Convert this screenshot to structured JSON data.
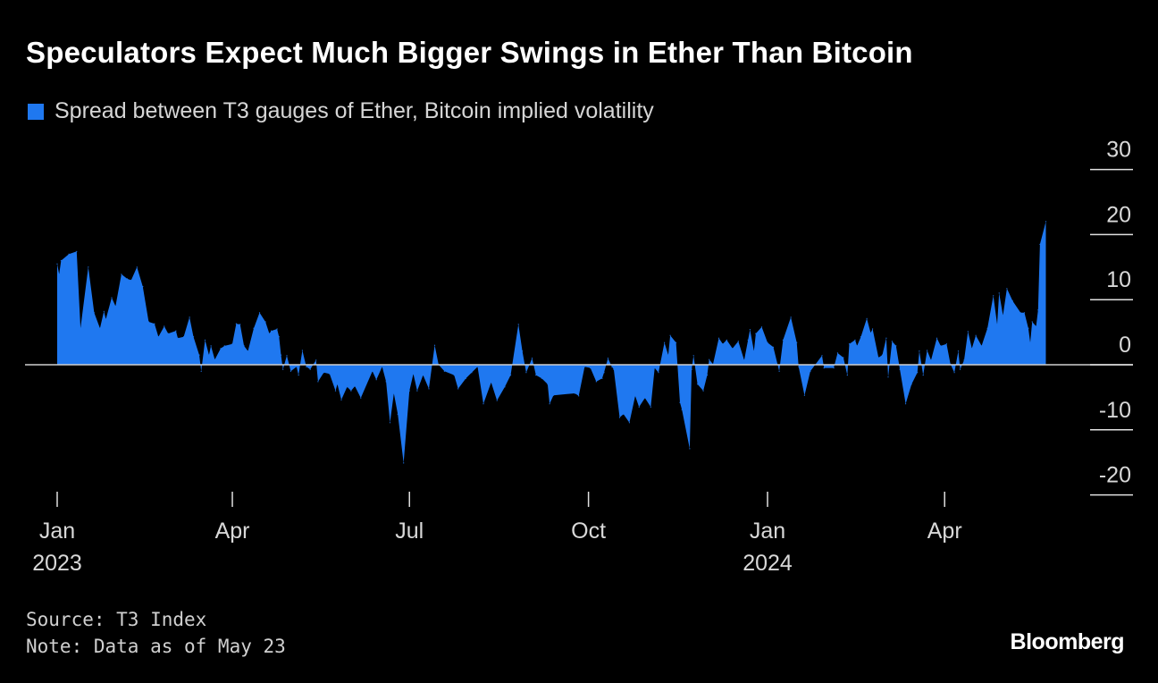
{
  "colors": {
    "series": "#1f78f0",
    "background": "#000000",
    "zero_line": "#cfcfcf",
    "text": "#ffffff"
  },
  "chart_data": {
    "type": "area",
    "title": "Speculators Expect Much Bigger Swings in Ether Than Bitcoin",
    "legend_position": "top-left",
    "series": [
      {
        "name": "Spread between T3 gauges of Ether, Bitcoin implied volatility",
        "points": [
          [
            "2023-01-01",
            15.5
          ],
          [
            "2023-01-02",
            13.9
          ],
          [
            "2023-01-03",
            16
          ],
          [
            "2023-01-07",
            17
          ],
          [
            "2023-01-11",
            17.4
          ],
          [
            "2023-01-13",
            5.6
          ],
          [
            "2023-01-17",
            15
          ],
          [
            "2023-01-20",
            8
          ],
          [
            "2023-01-23",
            5.6
          ],
          [
            "2023-01-25",
            8.2
          ],
          [
            "2023-01-26",
            7
          ],
          [
            "2023-01-29",
            10.3
          ],
          [
            "2023-01-31",
            9
          ],
          [
            "2023-02-03",
            13.9
          ],
          [
            "2023-02-06",
            13.2
          ],
          [
            "2023-02-08",
            13
          ],
          [
            "2023-02-11",
            15
          ],
          [
            "2023-02-14",
            12
          ],
          [
            "2023-02-17",
            6.6
          ],
          [
            "2023-02-20",
            6.3
          ],
          [
            "2023-02-22",
            4.3
          ],
          [
            "2023-02-25",
            5.9
          ],
          [
            "2023-02-27",
            4.8
          ],
          [
            "2023-03-03",
            5.2
          ],
          [
            "2023-03-04",
            4.1
          ],
          [
            "2023-03-07",
            4.3
          ],
          [
            "2023-03-10",
            7.3
          ],
          [
            "2023-03-12",
            4.3
          ],
          [
            "2023-03-15",
            1.5
          ],
          [
            "2023-03-16",
            -1
          ],
          [
            "2023-03-18",
            3.8
          ],
          [
            "2023-03-20",
            1.5
          ],
          [
            "2023-03-21",
            2.9
          ],
          [
            "2023-03-23",
            0.8
          ],
          [
            "2023-03-26",
            2.5
          ],
          [
            "2023-03-28",
            2.9
          ],
          [
            "2023-04-01",
            3.2
          ],
          [
            "2023-04-03",
            6.3
          ],
          [
            "2023-04-05",
            6.2
          ],
          [
            "2023-04-07",
            2.9
          ],
          [
            "2023-04-09",
            2.1
          ],
          [
            "2023-04-12",
            5.6
          ],
          [
            "2023-04-15",
            8
          ],
          [
            "2023-04-18",
            6.6
          ],
          [
            "2023-04-20",
            4.8
          ],
          [
            "2023-04-21",
            5.2
          ],
          [
            "2023-04-24",
            5.5
          ],
          [
            "2023-04-25",
            4.3
          ],
          [
            "2023-04-26",
            1.5
          ],
          [
            "2023-04-27",
            -0.7
          ],
          [
            "2023-04-29",
            1.4
          ],
          [
            "2023-05-01",
            -1
          ],
          [
            "2023-05-04",
            -0.3
          ],
          [
            "2023-05-05",
            -1.6
          ],
          [
            "2023-05-07",
            2.2
          ],
          [
            "2023-05-09",
            -0.3
          ],
          [
            "2023-05-11",
            -0.7
          ],
          [
            "2023-05-14",
            0.7
          ],
          [
            "2023-05-15",
            -2.6
          ],
          [
            "2023-05-18",
            -1.2
          ],
          [
            "2023-05-21",
            -1.4
          ],
          [
            "2023-05-24",
            -4
          ],
          [
            "2023-05-25",
            -3
          ],
          [
            "2023-05-27",
            -5.4
          ],
          [
            "2023-05-30",
            -3.4
          ],
          [
            "2023-06-01",
            -4
          ],
          [
            "2023-06-03",
            -3.3
          ],
          [
            "2023-06-06",
            -5.1
          ],
          [
            "2023-06-12",
            -1
          ],
          [
            "2023-06-14",
            -2.3
          ],
          [
            "2023-06-17",
            -0.3
          ],
          [
            "2023-06-19",
            -2.6
          ],
          [
            "2023-06-21",
            -8.9
          ],
          [
            "2023-06-23",
            -4.4
          ],
          [
            "2023-06-25",
            -7.6
          ],
          [
            "2023-06-28",
            -15.1
          ],
          [
            "2023-07-01",
            -4
          ],
          [
            "2023-07-03",
            -1.4
          ],
          [
            "2023-07-05",
            -4
          ],
          [
            "2023-07-08",
            -1.6
          ],
          [
            "2023-07-11",
            -3.7
          ],
          [
            "2023-07-14",
            3
          ],
          [
            "2023-07-16",
            0
          ],
          [
            "2023-07-19",
            -1
          ],
          [
            "2023-07-24",
            -1.6
          ],
          [
            "2023-07-26",
            -3.7
          ],
          [
            "2023-07-30",
            -2.1
          ],
          [
            "2023-08-02",
            -1.2
          ],
          [
            "2023-08-05",
            -0.3
          ],
          [
            "2023-08-08",
            -6
          ],
          [
            "2023-08-12",
            -2.7
          ],
          [
            "2023-08-15",
            -5.5
          ],
          [
            "2023-08-19",
            -3.4
          ],
          [
            "2023-08-22",
            -1.6
          ],
          [
            "2023-08-26",
            6.2
          ],
          [
            "2023-08-28",
            2.1
          ],
          [
            "2023-08-30",
            -1.2
          ],
          [
            "2023-09-02",
            1
          ],
          [
            "2023-09-04",
            -1.6
          ],
          [
            "2023-09-07",
            -2.1
          ],
          [
            "2023-09-10",
            -3
          ],
          [
            "2023-09-11",
            -6
          ],
          [
            "2023-09-13",
            -4.7
          ],
          [
            "2023-09-24",
            -4.4
          ],
          [
            "2023-09-26",
            -4.8
          ],
          [
            "2023-09-29",
            -0.3
          ],
          [
            "2023-10-02",
            -0.5
          ],
          [
            "2023-10-05",
            -2.6
          ],
          [
            "2023-10-08",
            -2.1
          ],
          [
            "2023-10-09",
            -1.2
          ],
          [
            "2023-10-11",
            1
          ],
          [
            "2023-10-13",
            -0.3
          ],
          [
            "2023-10-14",
            -0.7
          ],
          [
            "2023-10-17",
            -8.1
          ],
          [
            "2023-10-19",
            -7.6
          ],
          [
            "2023-10-22",
            -8.9
          ],
          [
            "2023-10-25",
            -4.8
          ],
          [
            "2023-10-27",
            -6.5
          ],
          [
            "2023-10-30",
            -5.1
          ],
          [
            "2023-11-02",
            -6.5
          ],
          [
            "2023-11-04",
            -0.5
          ],
          [
            "2023-11-06",
            -1.2
          ],
          [
            "2023-11-09",
            3.4
          ],
          [
            "2023-11-11",
            1.5
          ],
          [
            "2023-11-12",
            4.5
          ],
          [
            "2023-11-15",
            3.4
          ],
          [
            "2023-11-17",
            -5.8
          ],
          [
            "2023-11-18",
            -6.9
          ],
          [
            "2023-11-22",
            -12.9
          ],
          [
            "2023-11-23",
            -0.7
          ],
          [
            "2023-11-24",
            1.4
          ],
          [
            "2023-11-26",
            -3
          ],
          [
            "2023-11-29",
            -4
          ],
          [
            "2023-12-01",
            -1.6
          ],
          [
            "2023-12-02",
            0.8
          ],
          [
            "2023-12-04",
            0.1
          ],
          [
            "2023-12-07",
            4.1
          ],
          [
            "2023-12-09",
            3.2
          ],
          [
            "2023-12-11",
            3.8
          ],
          [
            "2023-12-14",
            2.5
          ],
          [
            "2023-12-17",
            3.6
          ],
          [
            "2023-12-20",
            0.7
          ],
          [
            "2023-12-22",
            3.8
          ],
          [
            "2023-12-23",
            5.4
          ],
          [
            "2023-12-25",
            2.1
          ],
          [
            "2023-12-26",
            4.8
          ],
          [
            "2023-12-29",
            5.8
          ],
          [
            "2024-01-01",
            3.4
          ],
          [
            "2024-01-04",
            2.7
          ],
          [
            "2024-01-07",
            -1
          ],
          [
            "2024-01-09",
            3.8
          ],
          [
            "2024-01-13",
            7.3
          ],
          [
            "2024-01-16",
            3.4
          ],
          [
            "2024-01-17",
            -0.3
          ],
          [
            "2024-01-20",
            -4.7
          ],
          [
            "2024-01-23",
            -1
          ],
          [
            "2024-01-29",
            1.4
          ],
          [
            "2024-01-30",
            -0.5
          ],
          [
            "2024-02-04",
            -0.5
          ],
          [
            "2024-02-06",
            1.8
          ],
          [
            "2024-02-09",
            1.1
          ],
          [
            "2024-02-11",
            -1.6
          ],
          [
            "2024-02-12",
            3.2
          ],
          [
            "2024-02-15",
            3.8
          ],
          [
            "2024-02-16",
            2.9
          ],
          [
            "2024-02-18",
            4.3
          ],
          [
            "2024-02-21",
            7.1
          ],
          [
            "2024-02-23",
            4.9
          ],
          [
            "2024-02-24",
            5.5
          ],
          [
            "2024-02-27",
            1.1
          ],
          [
            "2024-02-29",
            1.5
          ],
          [
            "2024-03-02",
            4.1
          ],
          [
            "2024-03-03",
            -1.9
          ],
          [
            "2024-03-05",
            3.6
          ],
          [
            "2024-03-07",
            2.9
          ],
          [
            "2024-03-09",
            -0.7
          ],
          [
            "2024-03-12",
            -6
          ],
          [
            "2024-03-15",
            -3
          ],
          [
            "2024-03-18",
            -1.2
          ],
          [
            "2024-03-19",
            2.1
          ],
          [
            "2024-03-21",
            -1.6
          ],
          [
            "2024-03-23",
            2.2
          ],
          [
            "2024-03-25",
            0.7
          ],
          [
            "2024-03-28",
            4.1
          ],
          [
            "2024-03-30",
            2.9
          ],
          [
            "2024-04-02",
            3.2
          ],
          [
            "2024-04-04",
            0.1
          ],
          [
            "2024-04-06",
            -1.2
          ],
          [
            "2024-04-08",
            2.1
          ],
          [
            "2024-04-09",
            -0.7
          ],
          [
            "2024-04-11",
            0.7
          ],
          [
            "2024-04-13",
            5.1
          ],
          [
            "2024-04-15",
            2.5
          ],
          [
            "2024-04-17",
            4.5
          ],
          [
            "2024-04-20",
            2.9
          ],
          [
            "2024-04-23",
            5.6
          ],
          [
            "2024-04-26",
            10.6
          ],
          [
            "2024-04-28",
            6.2
          ],
          [
            "2024-04-29",
            11
          ],
          [
            "2024-05-01",
            7.6
          ],
          [
            "2024-05-03",
            11.7
          ],
          [
            "2024-05-06",
            9.8
          ],
          [
            "2024-05-10",
            8
          ],
          [
            "2024-05-12",
            8
          ],
          [
            "2024-05-14",
            5.6
          ],
          [
            "2024-05-15",
            3.4
          ],
          [
            "2024-05-16",
            6.6
          ],
          [
            "2024-05-18",
            5.9
          ],
          [
            "2024-05-19",
            8.4
          ],
          [
            "2024-05-20",
            18.5
          ],
          [
            "2024-05-23",
            22
          ]
        ]
      }
    ],
    "ylim": [
      -20,
      30
    ],
    "y_ticks": [
      30,
      20,
      10,
      0,
      -10,
      -20
    ],
    "y_tick_labels": [
      "30",
      "20",
      "10",
      "0",
      "-10",
      "-20"
    ],
    "y_axis_side": "right",
    "xlim": [
      "2023-01-01",
      "2024-06-20"
    ],
    "x_ticks": [
      {
        "date": "2023-01-01",
        "label": "Jan",
        "year": "2023"
      },
      {
        "date": "2023-04-01",
        "label": "Apr",
        "year": ""
      },
      {
        "date": "2023-07-01",
        "label": "Jul",
        "year": ""
      },
      {
        "date": "2023-10-01",
        "label": "Oct",
        "year": ""
      },
      {
        "date": "2024-01-01",
        "label": "Jan",
        "year": "2024"
      },
      {
        "date": "2024-04-01",
        "label": "Apr",
        "year": ""
      }
    ],
    "grid": false
  },
  "footer": {
    "source": "Source: T3 Index",
    "note": "Note: Data as of May 23",
    "logo": "Bloomberg"
  }
}
